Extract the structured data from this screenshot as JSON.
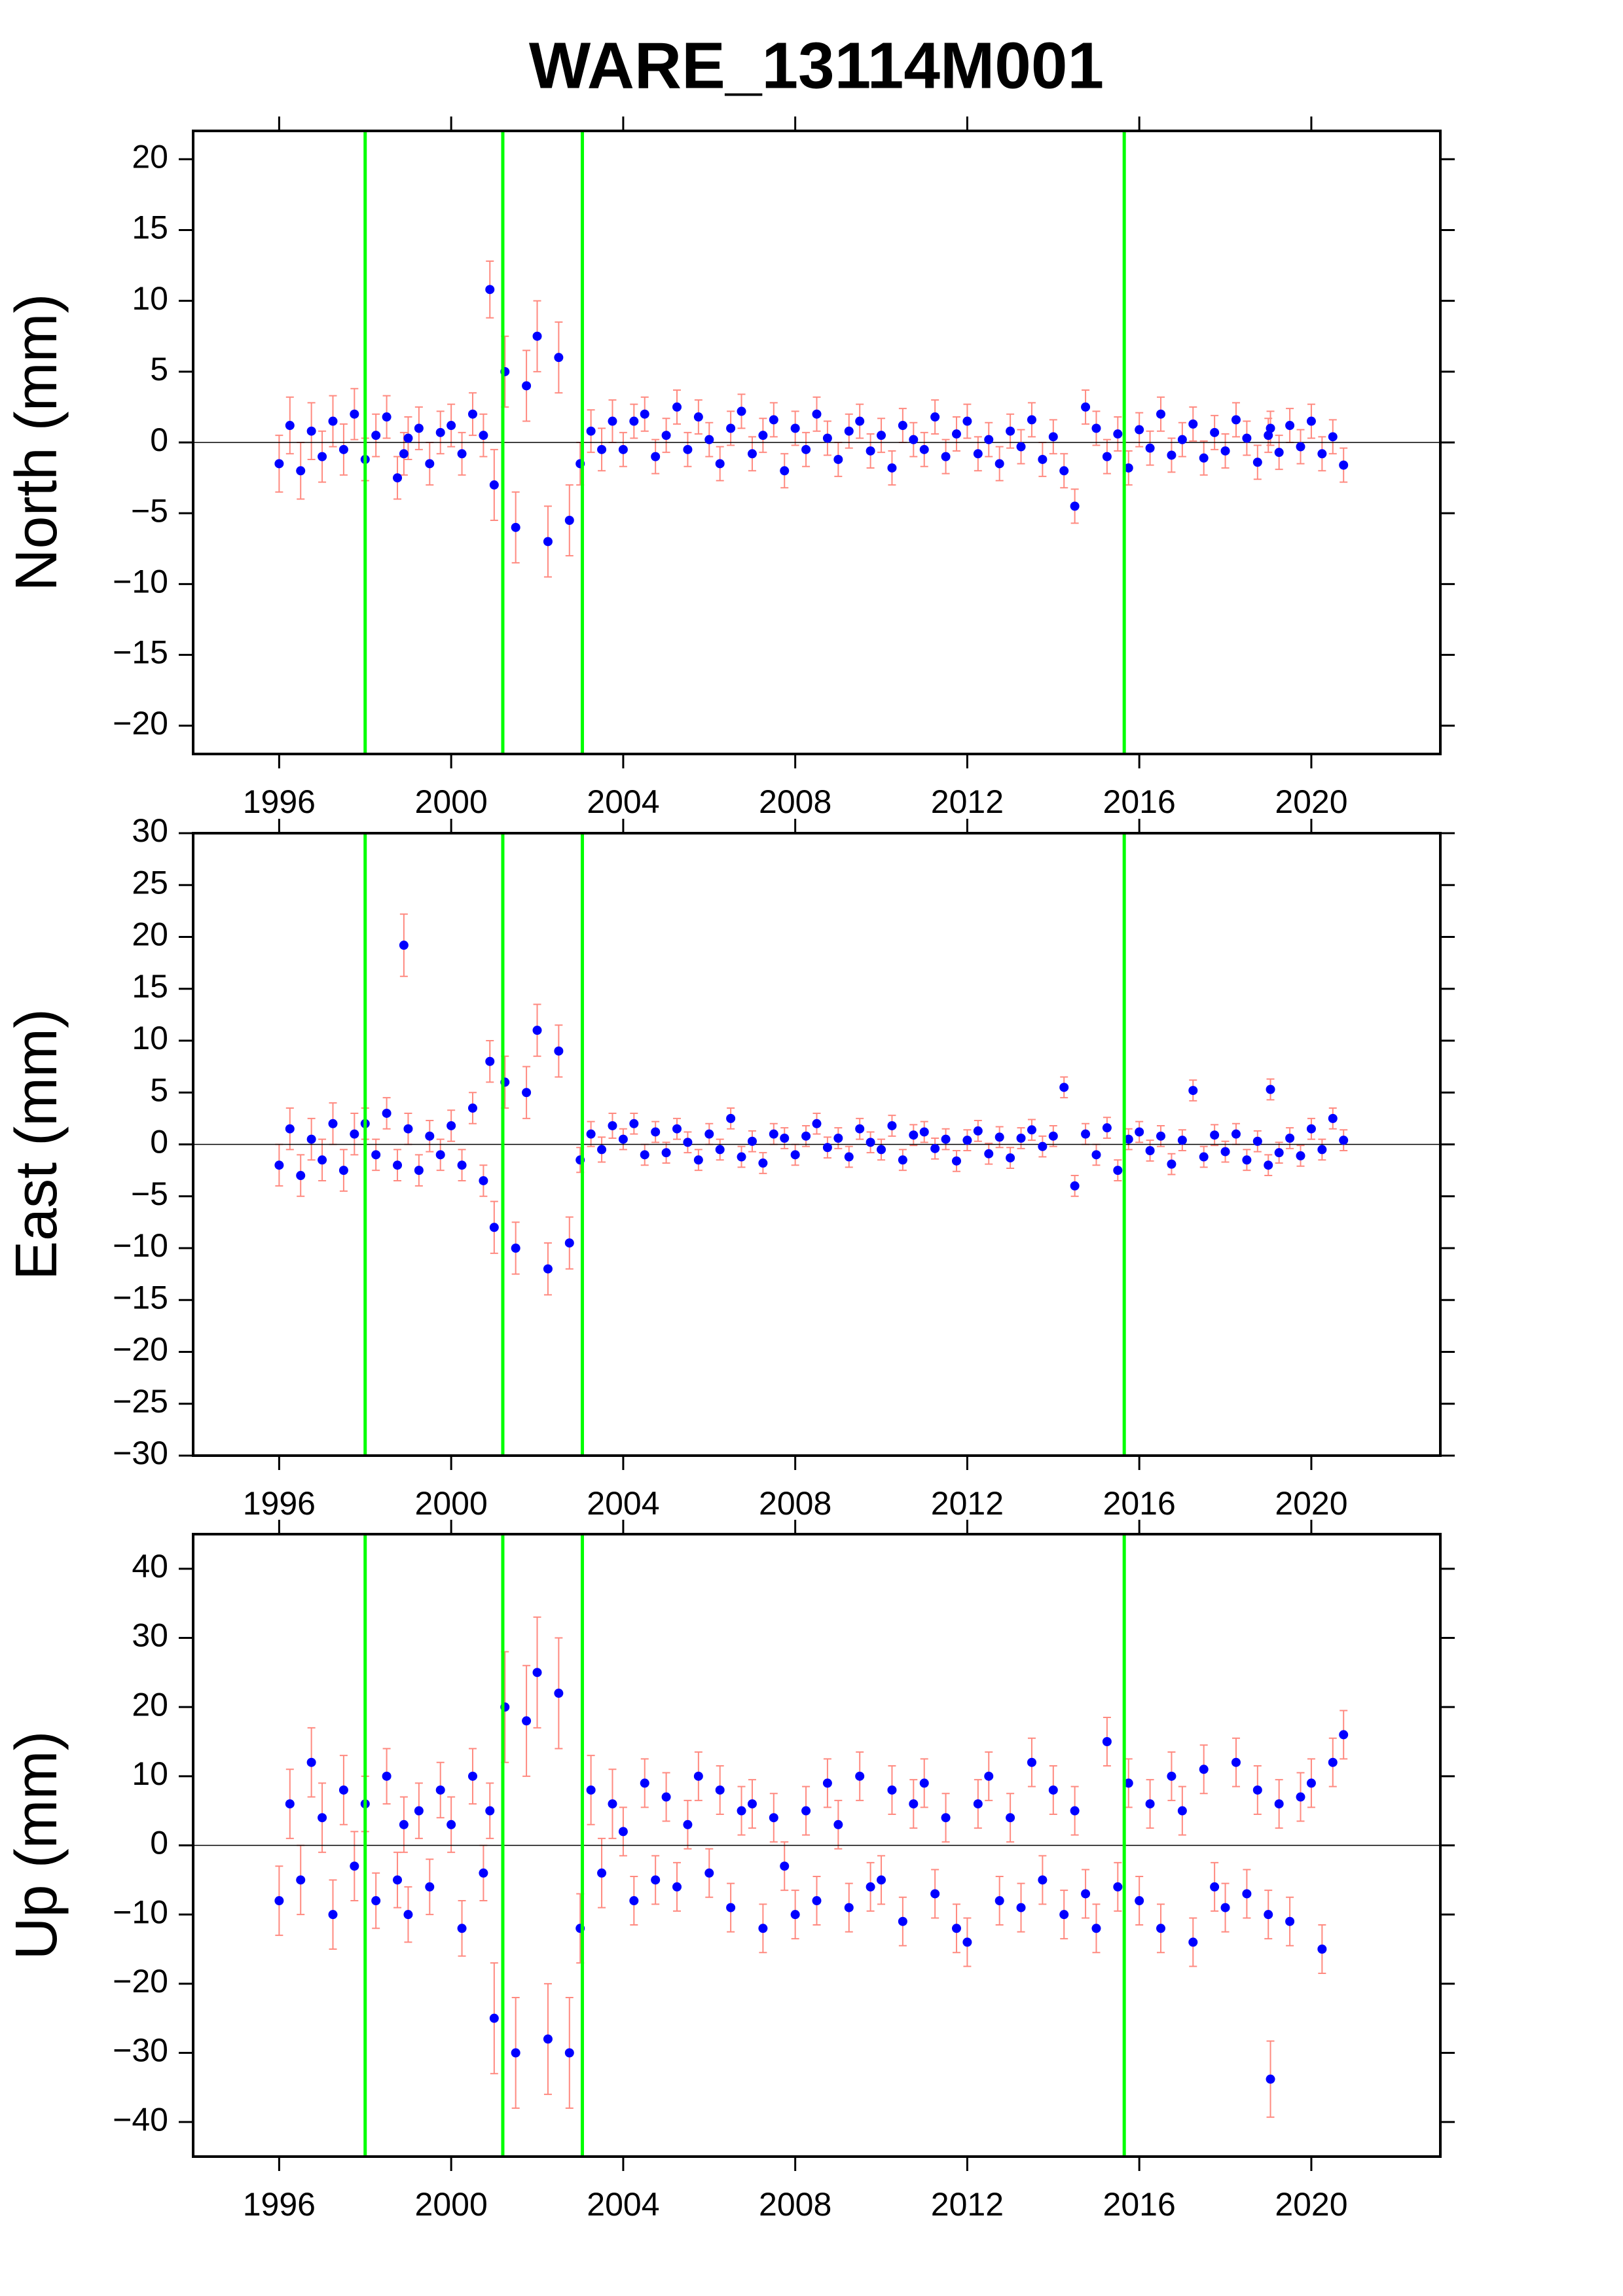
{
  "chart_data": [
    {
      "type": "scatter",
      "title": "WARE_13114M001",
      "ylabel": "North (mm)",
      "color": "#0000ff",
      "error_color": "#ff8a80",
      "vline_color": "#00ff00",
      "hline": 0,
      "xlim": [
        1994,
        2023
      ],
      "xticks": [
        1996,
        2000,
        2004,
        2008,
        2012,
        2016,
        2020
      ],
      "ylim": [
        -22,
        22
      ],
      "yticks": [
        {
          "value": -20,
          "label": "−20"
        },
        {
          "value": -15,
          "label": "−15"
        },
        {
          "value": -10,
          "label": "−10"
        },
        {
          "value": -5,
          "label": "−5"
        },
        0,
        5,
        10,
        15,
        20
      ],
      "vlines": [
        1998.0,
        2001.2,
        2003.05,
        2015.65
      ],
      "x": [
        1996,
        1996.25,
        1996.5,
        1996.75,
        1997,
        1997.25,
        1997.5,
        1997.75,
        1998,
        1998.25,
        1998.5,
        1998.75,
        1998.9,
        1999,
        1999.25,
        1999.5,
        1999.75,
        2000,
        2000.25,
        2000.5,
        2000.75,
        2000.9,
        2001,
        2001.25,
        2001.5,
        2001.75,
        2002,
        2002.25,
        2002.5,
        2002.75,
        2003,
        2003.25,
        2003.5,
        2003.75,
        2004,
        2004.25,
        2004.5,
        2004.75,
        2005,
        2005.25,
        2005.5,
        2005.75,
        2006,
        2006.25,
        2006.5,
        2006.75,
        2007,
        2007.25,
        2007.5,
        2007.75,
        2008,
        2008.25,
        2008.5,
        2008.75,
        2009,
        2009.25,
        2009.5,
        2009.75,
        2010,
        2010.25,
        2010.5,
        2010.75,
        2011,
        2011.25,
        2011.5,
        2011.75,
        2012,
        2012.25,
        2012.5,
        2012.75,
        2013,
        2013.25,
        2013.5,
        2013.75,
        2014,
        2014.25,
        2014.5,
        2014.75,
        2015,
        2015.25,
        2015.5,
        2015.75,
        2016,
        2016.25,
        2016.5,
        2016.75,
        2017,
        2017.25,
        2017.5,
        2017.75,
        2018,
        2018.25,
        2018.5,
        2018.75,
        2019,
        2019.05,
        2019.25,
        2019.5,
        2019.75,
        2020,
        2020.25,
        2020.5,
        2020.75
      ],
      "values": [
        -1.5,
        1.2,
        -2.0,
        0.8,
        -1.0,
        1.5,
        -0.5,
        2.0,
        -1.2,
        0.5,
        1.8,
        -2.5,
        -0.8,
        0.3,
        1.0,
        -1.5,
        0.7,
        1.2,
        -0.8,
        2.0,
        0.5,
        10.8,
        -3.0,
        5.0,
        -6.0,
        4.0,
        7.5,
        -7.0,
        6.0,
        -5.5,
        -1.5,
        0.8,
        -0.5,
        1.5,
        -0.5,
        1.5,
        2.0,
        -1.0,
        0.5,
        2.5,
        -0.5,
        1.8,
        0.2,
        -1.5,
        1.0,
        2.2,
        -0.8,
        0.5,
        1.6,
        -2.0,
        1.0,
        -0.5,
        2.0,
        0.3,
        -1.2,
        0.8,
        1.5,
        -0.6,
        0.5,
        -1.8,
        1.2,
        0.2,
        -0.5,
        1.8,
        -1.0,
        0.6,
        1.5,
        -0.8,
        0.2,
        -1.5,
        0.8,
        -0.3,
        1.6,
        -1.2,
        0.4,
        -2.0,
        -4.5,
        2.5,
        1.0,
        -1.0,
        0.6,
        -1.8,
        0.9,
        -0.4,
        2.0,
        -0.9,
        0.2,
        1.3,
        -1.1,
        0.7,
        -0.6,
        1.6,
        0.3,
        -1.4,
        0.5,
        1.0,
        -0.7,
        1.2,
        -0.3,
        1.5,
        -0.8,
        0.4,
        -1.6
      ],
      "errors": [
        2,
        2,
        2,
        2,
        1.8,
        1.8,
        1.8,
        1.8,
        1.5,
        1.5,
        1.5,
        1.5,
        1.5,
        1.5,
        1.5,
        1.5,
        1.5,
        1.5,
        1.5,
        1.5,
        1.5,
        2.0,
        2.5,
        2.5,
        2.5,
        2.5,
        2.5,
        2.5,
        2.5,
        2.5,
        1.5,
        1.5,
        1.5,
        1.5,
        1.2,
        1.2,
        1.2,
        1.2,
        1.2,
        1.2,
        1.2,
        1.2,
        1.2,
        1.2,
        1.2,
        1.2,
        1.2,
        1.2,
        1.2,
        1.2,
        1.2,
        1.2,
        1.2,
        1.2,
        1.2,
        1.2,
        1.2,
        1.2,
        1.2,
        1.2,
        1.2,
        1.2,
        1.2,
        1.2,
        1.2,
        1.2,
        1.2,
        1.2,
        1.2,
        1.2,
        1.2,
        1.2,
        1.2,
        1.2,
        1.2,
        1.2,
        1.2,
        1.2,
        1.2,
        1.2,
        1.2,
        1.2,
        1.2,
        1.2,
        1.2,
        1.2,
        1.2,
        1.2,
        1.2,
        1.2,
        1.2,
        1.2,
        1.2,
        1.2,
        1.2,
        1.2,
        1.2,
        1.2,
        1.2,
        1.2,
        1.2,
        1.2,
        1.2
      ]
    },
    {
      "type": "scatter",
      "ylabel": "East (mm)",
      "color": "#0000ff",
      "error_color": "#ff8a80",
      "vline_color": "#00ff00",
      "hline": 0,
      "xlim": [
        1994,
        2023
      ],
      "xticks": [
        1996,
        2000,
        2004,
        2008,
        2012,
        2016,
        2020
      ],
      "ylim": [
        -30,
        30
      ],
      "yticks": [
        {
          "value": -30,
          "label": "−30"
        },
        {
          "value": -25,
          "label": "−25"
        },
        {
          "value": -20,
          "label": "−20"
        },
        {
          "value": -15,
          "label": "−15"
        },
        {
          "value": -10,
          "label": "−10"
        },
        {
          "value": -5,
          "label": "−5"
        },
        0,
        5,
        10,
        15,
        20,
        25,
        30
      ],
      "vlines": [
        1998.0,
        2001.2,
        2003.05,
        2015.65
      ],
      "x": [
        1996,
        1996.25,
        1996.5,
        1996.75,
        1997,
        1997.25,
        1997.5,
        1997.75,
        1998,
        1998.25,
        1998.5,
        1998.75,
        1998.9,
        1999,
        1999.25,
        1999.5,
        1999.75,
        2000,
        2000.25,
        2000.5,
        2000.75,
        2000.9,
        2001,
        2001.25,
        2001.5,
        2001.75,
        2002,
        2002.25,
        2002.5,
        2002.75,
        2003,
        2003.25,
        2003.5,
        2003.75,
        2004,
        2004.25,
        2004.5,
        2004.75,
        2005,
        2005.25,
        2005.5,
        2005.75,
        2006,
        2006.25,
        2006.5,
        2006.75,
        2007,
        2007.25,
        2007.5,
        2007.75,
        2008,
        2008.25,
        2008.5,
        2008.75,
        2009,
        2009.25,
        2009.5,
        2009.75,
        2010,
        2010.25,
        2010.5,
        2010.75,
        2011,
        2011.25,
        2011.5,
        2011.75,
        2012,
        2012.25,
        2012.5,
        2012.75,
        2013,
        2013.25,
        2013.5,
        2013.75,
        2014,
        2014.25,
        2014.5,
        2014.75,
        2015,
        2015.25,
        2015.5,
        2015.75,
        2016,
        2016.25,
        2016.5,
        2016.75,
        2017,
        2017.25,
        2017.5,
        2017.75,
        2018,
        2018.25,
        2018.5,
        2018.75,
        2019,
        2019.05,
        2019.25,
        2019.5,
        2019.75,
        2020,
        2020.25,
        2020.5,
        2020.75
      ],
      "values": [
        -2.0,
        1.5,
        -3.0,
        0.5,
        -1.5,
        2.0,
        -2.5,
        1.0,
        2.0,
        -1.0,
        3.0,
        -2.0,
        19.2,
        1.5,
        -2.5,
        0.8,
        -1.0,
        1.8,
        -2.0,
        3.5,
        -3.5,
        8.0,
        -8.0,
        6.0,
        -10.0,
        5.0,
        11.0,
        -12.0,
        9.0,
        -9.5,
        -1.5,
        1.0,
        -0.5,
        1.8,
        0.5,
        2.0,
        -1.0,
        1.2,
        -0.8,
        1.5,
        0.2,
        -1.5,
        1.0,
        -0.5,
        2.5,
        -1.2,
        0.3,
        -1.8,
        1.0,
        0.6,
        -1.0,
        0.8,
        2.0,
        -0.3,
        0.6,
        -1.2,
        1.5,
        0.2,
        -0.5,
        1.8,
        -1.5,
        0.9,
        1.2,
        -0.4,
        0.5,
        -1.6,
        0.4,
        1.3,
        -0.9,
        0.7,
        -1.3,
        0.6,
        1.4,
        -0.2,
        0.8,
        5.5,
        -4.0,
        1.0,
        -1.0,
        1.6,
        -2.5,
        0.5,
        1.2,
        -0.6,
        0.8,
        -1.9,
        0.4,
        5.2,
        -1.2,
        0.9,
        -0.7,
        1.0,
        -1.5,
        0.3,
        -2.0,
        5.3,
        -0.8,
        0.6,
        -1.1,
        1.5,
        -0.5,
        2.5,
        0.4
      ],
      "errors": [
        2,
        2,
        2,
        2,
        2,
        2,
        2,
        2,
        1.5,
        1.5,
        1.5,
        1.5,
        3.0,
        1.5,
        1.5,
        1.5,
        1.5,
        1.5,
        1.5,
        1.5,
        1.5,
        2.0,
        2.5,
        2.5,
        2.5,
        2.5,
        2.5,
        2.5,
        2.5,
        2.5,
        1.2,
        1.2,
        1.2,
        1.2,
        1,
        1,
        1,
        1,
        1,
        1,
        1,
        1,
        1,
        1,
        1,
        1,
        1,
        1,
        1,
        1,
        1,
        1,
        1,
        1,
        1,
        1,
        1,
        1,
        1,
        1,
        1,
        1,
        1,
        1,
        1,
        1,
        1,
        1,
        1,
        1,
        1,
        1,
        1,
        1,
        1,
        1,
        1,
        1,
        1,
        1,
        1,
        1,
        1,
        1,
        1,
        1,
        1,
        1,
        1,
        1,
        1,
        1,
        1,
        1,
        1,
        1,
        1,
        1,
        1,
        1,
        1,
        1,
        1
      ]
    },
    {
      "type": "scatter",
      "ylabel": "Up (mm)",
      "color": "#0000ff",
      "error_color": "#ff8a80",
      "vline_color": "#00ff00",
      "hline": 0,
      "xlim": [
        1994,
        2023
      ],
      "xticks": [
        1996,
        2000,
        2004,
        2008,
        2012,
        2016,
        2020
      ],
      "ylim": [
        -45,
        45
      ],
      "yticks": [
        {
          "value": -40,
          "label": "−40"
        },
        {
          "value": -30,
          "label": "−30"
        },
        {
          "value": -20,
          "label": "−20"
        },
        {
          "value": -10,
          "label": "−10"
        },
        0,
        10,
        20,
        30,
        40
      ],
      "vlines": [
        1998.0,
        2001.2,
        2003.05,
        2015.65
      ],
      "x": [
        1996,
        1996.25,
        1996.5,
        1996.75,
        1997,
        1997.25,
        1997.5,
        1997.75,
        1998,
        1998.25,
        1998.5,
        1998.75,
        1998.9,
        1999,
        1999.25,
        1999.5,
        1999.75,
        2000,
        2000.25,
        2000.5,
        2000.75,
        2000.9,
        2001,
        2001.25,
        2001.5,
        2001.75,
        2002,
        2002.25,
        2002.5,
        2002.75,
        2003,
        2003.25,
        2003.5,
        2003.75,
        2004,
        2004.25,
        2004.5,
        2004.75,
        2005,
        2005.25,
        2005.5,
        2005.75,
        2006,
        2006.25,
        2006.5,
        2006.75,
        2007,
        2007.25,
        2007.5,
        2007.75,
        2008,
        2008.25,
        2008.5,
        2008.75,
        2009,
        2009.25,
        2009.5,
        2009.75,
        2010,
        2010.25,
        2010.5,
        2010.75,
        2011,
        2011.25,
        2011.5,
        2011.75,
        2012,
        2012.25,
        2012.5,
        2012.75,
        2013,
        2013.25,
        2013.5,
        2013.75,
        2014,
        2014.25,
        2014.5,
        2014.75,
        2015,
        2015.25,
        2015.5,
        2015.75,
        2016,
        2016.25,
        2016.5,
        2016.75,
        2017,
        2017.25,
        2017.5,
        2017.75,
        2018,
        2018.25,
        2018.5,
        2018.75,
        2019,
        2019.05,
        2019.25,
        2019.5,
        2019.75,
        2020,
        2020.25,
        2020.5,
        2020.75
      ],
      "values": [
        -8,
        6,
        -5,
        12,
        4,
        -10,
        8,
        -3,
        6,
        -8,
        10,
        -5,
        3,
        -10,
        5,
        -6,
        8,
        3,
        -12,
        10,
        -4,
        5,
        -25,
        20,
        -30,
        18,
        25,
        -28,
        22,
        -30,
        -12,
        8,
        -4,
        6,
        2,
        -8,
        9,
        -5,
        7,
        -6,
        3,
        10,
        -4,
        8,
        -9,
        5,
        6,
        -12,
        4,
        -3,
        -10,
        5,
        -8,
        9,
        3,
        -9,
        10,
        -6,
        -5,
        8,
        -11,
        6,
        9,
        -7,
        4,
        -12,
        -14,
        6,
        10,
        -8,
        4,
        -9,
        12,
        -5,
        8,
        -10,
        5,
        -7,
        -12,
        15,
        -6,
        9,
        -8,
        6,
        -12,
        10,
        5,
        -14,
        11,
        -6,
        -9,
        12,
        -7,
        8,
        -10,
        -33.8,
        6,
        -11,
        7,
        9,
        -15,
        12,
        16
      ],
      "errors": [
        5,
        5,
        5,
        5,
        5,
        5,
        5,
        5,
        4,
        4,
        4,
        4,
        4,
        4,
        4,
        4,
        4,
        4,
        4,
        4,
        4,
        4,
        8,
        8,
        8,
        8,
        8,
        8,
        8,
        8,
        5,
        5,
        5,
        5,
        3.5,
        3.5,
        3.5,
        3.5,
        3.5,
        3.5,
        3.5,
        3.5,
        3.5,
        3.5,
        3.5,
        3.5,
        3.5,
        3.5,
        3.5,
        3.5,
        3.5,
        3.5,
        3.5,
        3.5,
        3.5,
        3.5,
        3.5,
        3.5,
        3.5,
        3.5,
        3.5,
        3.5,
        3.5,
        3.5,
        3.5,
        3.5,
        3.5,
        3.5,
        3.5,
        3.5,
        3.5,
        3.5,
        3.5,
        3.5,
        3.5,
        3.5,
        3.5,
        3.5,
        3.5,
        3.5,
        3.5,
        3.5,
        3.5,
        3.5,
        3.5,
        3.5,
        3.5,
        3.5,
        3.5,
        3.5,
        3.5,
        3.5,
        3.5,
        3.5,
        3.5,
        5.5,
        3.5,
        3.5,
        3.5,
        3.5,
        3.5,
        3.5,
        3.5
      ]
    }
  ]
}
